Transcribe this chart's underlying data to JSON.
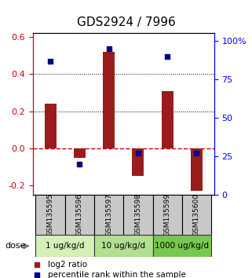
{
  "title": "GDS2924 / 7996",
  "samples": [
    "GSM135595",
    "GSM135596",
    "GSM135597",
    "GSM135598",
    "GSM135599",
    "GSM135600"
  ],
  "log2_ratio": [
    0.24,
    -0.05,
    0.52,
    -0.15,
    0.31,
    -0.23
  ],
  "percentile_rank": [
    87,
    20,
    95,
    27,
    90,
    27
  ],
  "dose_groups": [
    {
      "label": "1 ug/kg/d",
      "samples": [
        0,
        1
      ],
      "color": "#d4f0b8"
    },
    {
      "label": "10 ug/kg/d",
      "samples": [
        2,
        3
      ],
      "color": "#b0e090"
    },
    {
      "label": "1000 ug/kg/d",
      "samples": [
        4,
        5
      ],
      "color": "#78c850"
    }
  ],
  "left_ylim": [
    -0.25,
    0.62
  ],
  "right_ylim": [
    0,
    105
  ],
  "left_yticks": [
    -0.2,
    0.0,
    0.2,
    0.4,
    0.6
  ],
  "right_yticks": [
    0,
    25,
    50,
    75,
    100
  ],
  "right_yticklabels": [
    "0",
    "25",
    "50",
    "75",
    "100%"
  ],
  "bar_color": "#9b1c1c",
  "dot_color": "#00008b",
  "zero_line_color": "#cc0000",
  "hline_color": "#000000",
  "hline_values": [
    0.2,
    0.4
  ],
  "bar_width": 0.4,
  "sample_box_color": "#c8c8c8",
  "sample_box_border": "#000000",
  "dose_arrow_label": "dose"
}
